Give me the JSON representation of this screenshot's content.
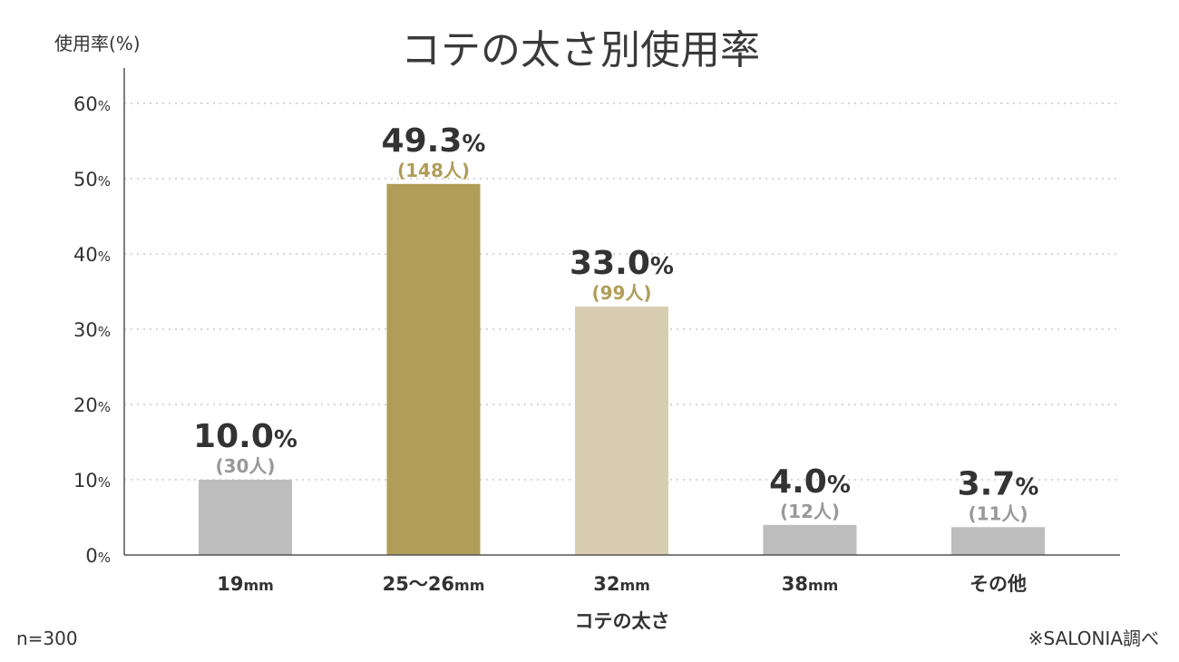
{
  "chart_data": {
    "type": "bar",
    "title": "コテの太さ別使用率",
    "ylabel": "使用率(%)",
    "xlabel": "コテの太さ",
    "ylim": [
      0,
      60
    ],
    "yticks": [
      0,
      10,
      20,
      30,
      40,
      50,
      60
    ],
    "ytick_unit": "%",
    "grid": true,
    "categories": [
      {
        "label": "19",
        "unit": "mm"
      },
      {
        "label": "25〜26",
        "unit": "mm"
      },
      {
        "label": "32",
        "unit": "mm"
      },
      {
        "label": "38",
        "unit": "mm"
      },
      {
        "label": "その他",
        "unit": ""
      }
    ],
    "values": [
      10.0,
      49.3,
      33.0,
      4.0,
      3.7
    ],
    "value_labels": [
      "10.0",
      "49.3",
      "33.0",
      "4.0",
      "3.7"
    ],
    "value_unit": "%",
    "counts": [
      "(30人)",
      "(148人)",
      "(99人)",
      "(12人)",
      "(11人)"
    ],
    "bar_colors": [
      "#bdbdbd",
      "#b09d58",
      "#d8cdb0",
      "#bdbdbd",
      "#bdbdbd"
    ],
    "count_colors": [
      "#999999",
      "#b09d58",
      "#b09d58",
      "#999999",
      "#999999"
    ]
  },
  "footer": {
    "sample_size": "n=300",
    "source": "※SALONIA調べ"
  }
}
